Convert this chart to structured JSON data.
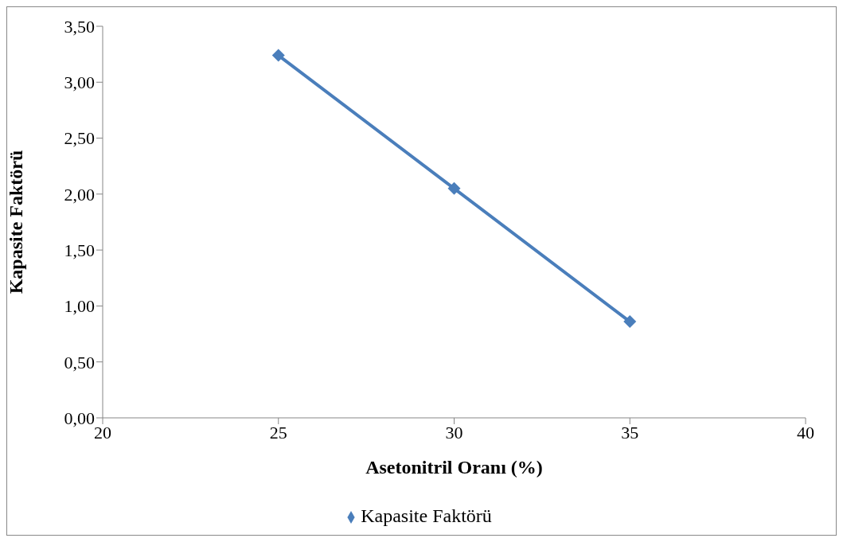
{
  "chart_data": {
    "type": "line",
    "xlabel": "Asetonitril Oranı (%)",
    "ylabel": "Kapasite Faktörü",
    "x": [
      25,
      30,
      35
    ],
    "series": [
      {
        "name": "Kapasite Faktörü",
        "color": "#4a7ebb",
        "values": [
          3.24,
          2.05,
          0.86
        ]
      }
    ],
    "xlim": [
      20,
      40
    ],
    "xticks": [
      20,
      25,
      30,
      35,
      40
    ],
    "ylim": [
      0,
      3.5
    ],
    "yticks": [
      {
        "value": 0,
        "label": "0,00"
      },
      {
        "value": 0.5,
        "label": "0,50"
      },
      {
        "value": 1,
        "label": "1,00"
      },
      {
        "value": 1.5,
        "label": "1,50"
      },
      {
        "value": 2,
        "label": "2,00"
      },
      {
        "value": 2.5,
        "label": "2,50"
      },
      {
        "value": 3,
        "label": "3,00"
      },
      {
        "value": 3.5,
        "label": "3,50"
      }
    ],
    "grid": false,
    "legend": "bottom",
    "marker": "diamond",
    "line_style": "solid"
  }
}
